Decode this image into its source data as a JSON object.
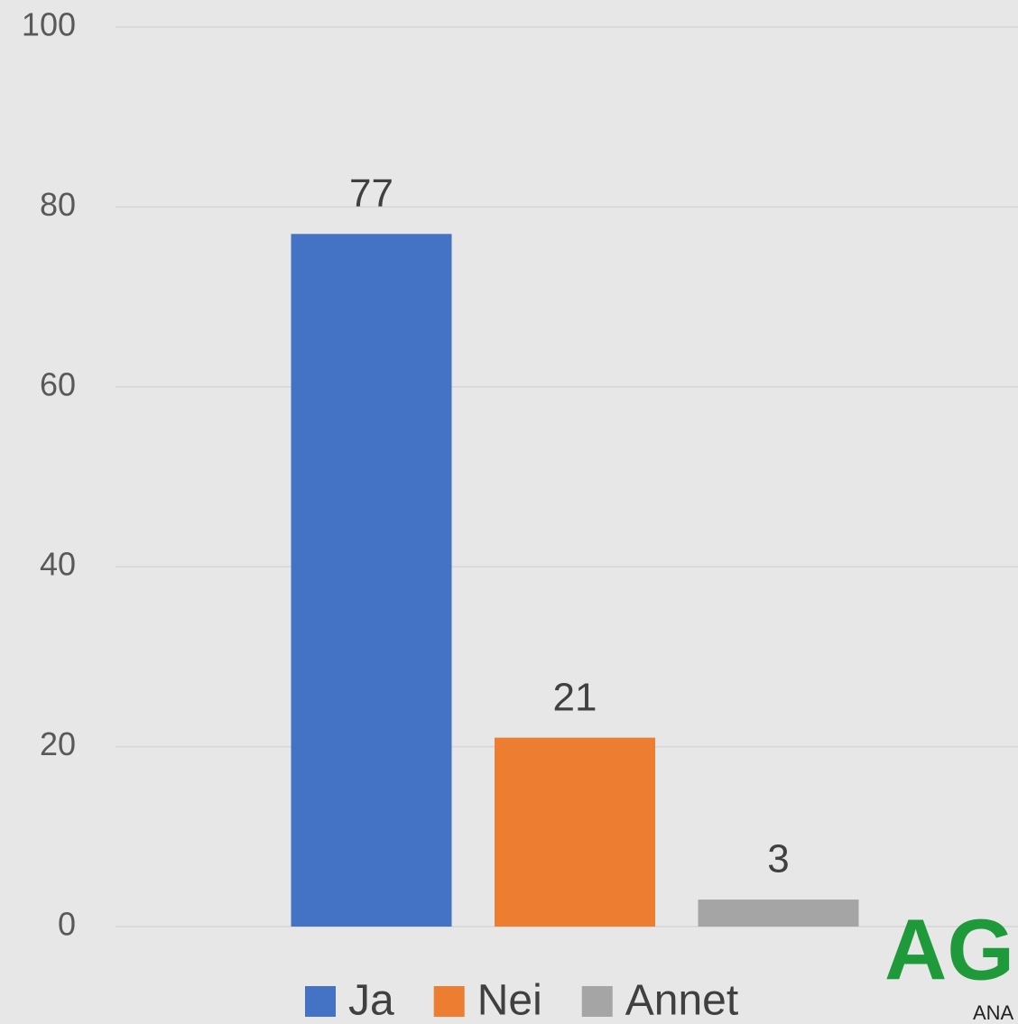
{
  "chart_data": {
    "type": "bar",
    "series": [
      {
        "name": "Ja",
        "color": "#4472c4",
        "values": [
          77
        ]
      },
      {
        "name": "Nei",
        "color": "#ed7d31",
        "values": [
          21
        ]
      },
      {
        "name": "Annet",
        "color": "#a5a5a5",
        "values": [
          3
        ]
      }
    ],
    "ylim": [
      0,
      100
    ],
    "yticks": [
      0,
      20,
      40,
      60,
      80,
      100
    ],
    "grid": true,
    "legend": "bottom",
    "logo": {
      "text": "AGI",
      "subtext": "ANA"
    }
  }
}
